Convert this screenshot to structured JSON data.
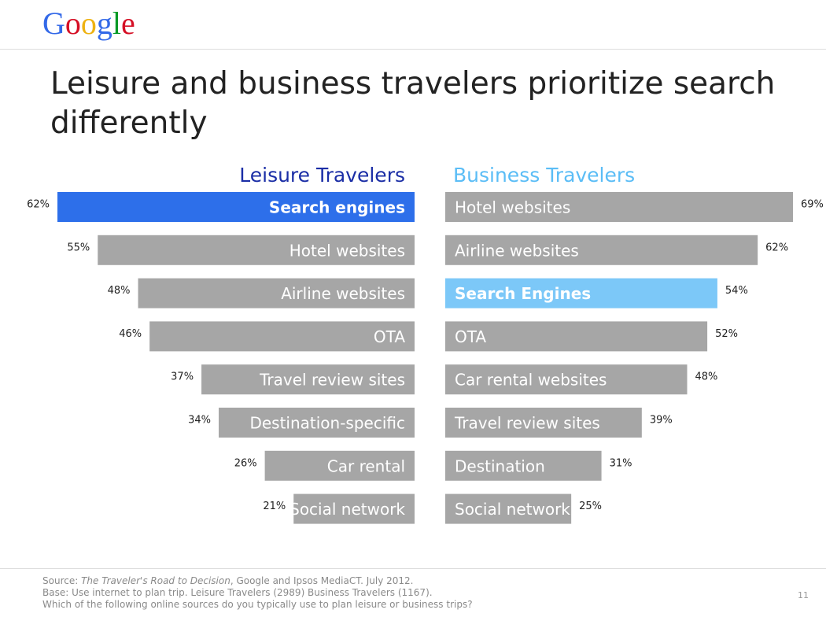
{
  "logo": "Google",
  "title": "Leisure and business travelers prioritize search differently",
  "chart_data": [
    {
      "type": "bar",
      "title": "Leisure Travelers",
      "title_color": "#1b2ea6",
      "side": "left",
      "categories": [
        "Search engines",
        "Hotel websites",
        "Airline websites",
        "OTA",
        "Travel review sites",
        "Destination-specific",
        "Car rental",
        "Social network"
      ],
      "values": [
        62,
        55,
        48,
        46,
        37,
        34,
        26,
        21
      ],
      "value_labels": [
        "62%",
        "55%",
        "48%",
        "46%",
        "37%",
        "34%",
        "26%",
        "21%"
      ],
      "color": "#a6a6a6",
      "highlight": 0,
      "highlight_color": "#2d6fea"
    },
    {
      "type": "bar",
      "title": "Business Travelers",
      "title_color": "#5bbdf6",
      "side": "right",
      "categories": [
        "Hotel websites",
        "Airline websites",
        "Search Engines",
        "OTA",
        "Car rental websites",
        "Travel review sites",
        "Destination",
        "Social network"
      ],
      "values": [
        69,
        62,
        54,
        52,
        48,
        39,
        31,
        25
      ],
      "value_labels": [
        "69%",
        "62%",
        "54%",
        "52%",
        "48%",
        "39%",
        "31%",
        "25%"
      ],
      "color": "#a6a6a6",
      "highlight": 2,
      "highlight_color": "#7cc8f8"
    }
  ],
  "footer": {
    "source_prefix": "Source: ",
    "source_title": "The Traveler's Road to Decision",
    "source_suffix": ", Google and Ipsos MediaCT. July 2012.",
    "base": "Base: Use internet to plan trip. Leisure Travelers (2989) Business Travelers (1167).",
    "question": "Which of the following online sources do you typically use to plan leisure or business trips?",
    "page": "11"
  }
}
